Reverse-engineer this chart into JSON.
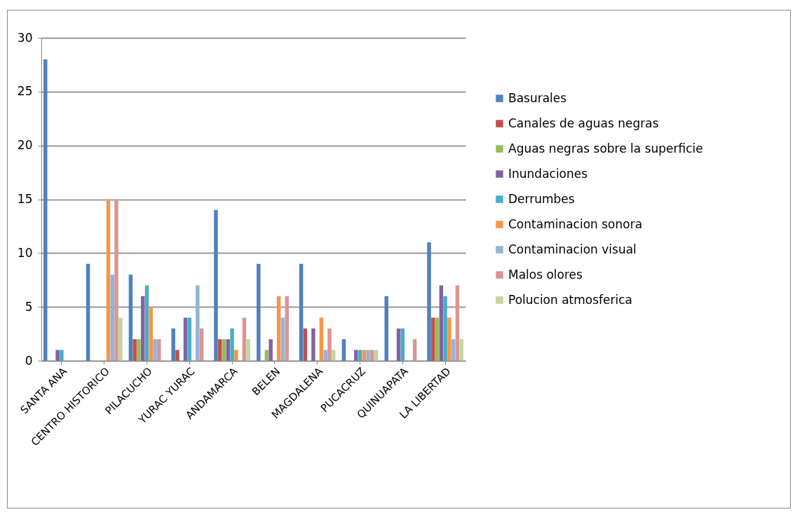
{
  "chart_data": {
    "type": "bar",
    "categories": [
      "SANTA ANA",
      "CENTRO HISTORICO",
      "PILACUCHO",
      "YURAC YURAC",
      "ANDAMARCA",
      "BELEN",
      "MAGDALENA",
      "PUCACRUZ",
      "QUINUAPATA",
      "LA LIBERTAD"
    ],
    "series": [
      {
        "name": "Basurales",
        "color": "#4f81bd",
        "values": [
          28,
          9,
          8,
          3,
          14,
          9,
          9,
          2,
          6,
          11
        ]
      },
      {
        "name": "Canales de aguas  negras",
        "color": "#c0504d",
        "values": [
          0,
          0,
          2,
          1,
          2,
          0,
          3,
          0,
          0,
          4
        ]
      },
      {
        "name": "Aguas negras sobre la superficie",
        "color": "#9bbb59",
        "values": [
          0,
          0,
          2,
          0,
          2,
          1,
          0,
          0,
          0,
          4
        ]
      },
      {
        "name": "Inundaciones",
        "color": "#8064a2",
        "values": [
          1,
          0,
          6,
          4,
          2,
          2,
          3,
          1,
          3,
          7
        ]
      },
      {
        "name": "Derrumbes",
        "color": "#4bacc6",
        "values": [
          1,
          0,
          7,
          4,
          3,
          0,
          0,
          1,
          3,
          6
        ]
      },
      {
        "name": "Contaminacion  sonora",
        "color": "#f79646",
        "values": [
          0,
          15,
          5,
          0,
          1,
          6,
          4,
          1,
          0,
          4
        ]
      },
      {
        "name": "Contaminacion  visual",
        "color": "#95b3d7",
        "values": [
          0,
          8,
          2,
          7,
          0,
          4,
          1,
          1,
          0,
          2
        ]
      },
      {
        "name": "Malos olores",
        "color": "#d99694",
        "values": [
          0,
          15,
          2,
          3,
          4,
          6,
          3,
          1,
          2,
          7
        ]
      },
      {
        "name": "Polucion atmosferica",
        "color": "#c3d69b",
        "values": [
          0,
          4,
          0,
          0,
          2,
          0,
          1,
          1,
          0,
          2
        ]
      }
    ],
    "ylim": [
      0,
      30
    ],
    "yticks": [
      0,
      5,
      10,
      15,
      20,
      25,
      30
    ],
    "grid": "y",
    "legend": "right"
  }
}
